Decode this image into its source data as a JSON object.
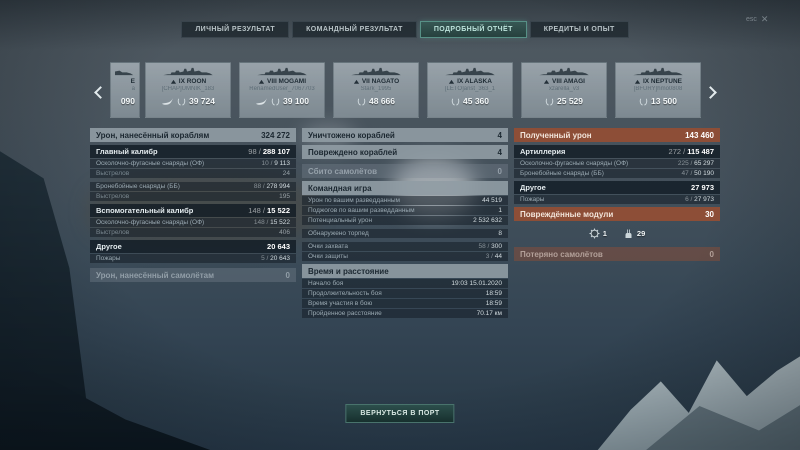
{
  "esc_hint": {
    "key": "esc",
    "close": "✕"
  },
  "tabs": [
    {
      "id": "personal-result",
      "label": "ЛИЧНЫЙ РЕЗУЛЬТАТ",
      "active": false
    },
    {
      "id": "team-result",
      "label": "КОМАНДНЫЙ РЕЗУЛЬТАТ",
      "active": false
    },
    {
      "id": "detailed-report",
      "label": "ПОДРОБНЫЙ ОТЧЁТ",
      "active": true
    },
    {
      "id": "credits-xp",
      "label": "КРЕДИТЫ И ОПЫТ",
      "active": false
    }
  ],
  "carousel": {
    "partial_card": {
      "name_fragment": "E",
      "player_fragment": "a",
      "damage_fragment": "090"
    },
    "ships": [
      {
        "name": "IX ROON",
        "player": "[CHAP]UMNIK_183",
        "damage": "39 724",
        "sunk": true
      },
      {
        "name": "VIII MOGAMI",
        "player": "RenamedUser_7067703",
        "damage": "39 100",
        "sunk": true
      },
      {
        "name": "VII NAGATO",
        "player": "Stark_1995",
        "damage": "48 666",
        "sunk": false
      },
      {
        "name": "IX ALASKA",
        "player": "[LETO]anst_363_1",
        "damage": "45 360",
        "sunk": false
      },
      {
        "name": "VIII AMAGI",
        "player": "xzarella_v3",
        "damage": "25 529",
        "sunk": false
      },
      {
        "name": "IX NEPTUNE",
        "player": "[BFURY]hmo0808",
        "damage": "13 500",
        "sunk": false
      }
    ]
  },
  "columns": {
    "left": {
      "rows": [
        {
          "type": "header",
          "label": "Урон, нанесённый кораблям",
          "value": "324 272"
        },
        {
          "type": "bold",
          "label": "Главный калибр",
          "value": "98 / 288 107"
        },
        {
          "type": "detail",
          "label": "Осколочно-фугасные снаряды (ОФ)",
          "value": "10 / 9 113"
        },
        {
          "type": "detail-dim",
          "label": "Выстрелов",
          "value": "24"
        },
        {
          "type": "detail",
          "label": "Бронебойные снаряды (ББ)",
          "value": "88 / 278 994",
          "gap": true
        },
        {
          "type": "detail-dim",
          "label": "Выстрелов",
          "value": "195"
        },
        {
          "type": "bold",
          "label": "Вспомогательный калибр",
          "value": "148 / 15 522"
        },
        {
          "type": "detail",
          "label": "Осколочно-фугасные снаряды (ОФ)",
          "value": "148 / 15 522"
        },
        {
          "type": "detail-dim",
          "label": "Выстрелов",
          "value": "406"
        },
        {
          "type": "bold",
          "label": "Другое",
          "value": "20 643"
        },
        {
          "type": "detail",
          "label": "Пожары",
          "value": "5 / 20 643"
        },
        {
          "type": "header-dim",
          "label": "Урон, нанесённый самолётам",
          "value": "0"
        }
      ]
    },
    "middle": {
      "rows": [
        {
          "type": "header",
          "label": "Уничтожено кораблей",
          "value": "4"
        },
        {
          "type": "header",
          "label": "Повреждено кораблей",
          "value": "4"
        },
        {
          "type": "header-dim",
          "label": "Сбито самолётов",
          "value": "0"
        },
        {
          "type": "header",
          "label": "Командная игра",
          "value": ""
        },
        {
          "type": "detail",
          "label": "Урон по вашим разведданным",
          "value": "44 519"
        },
        {
          "type": "detail",
          "label": "Поджогов по вашим разведданным",
          "value": "1"
        },
        {
          "type": "detail",
          "label": "Потенциальный урон",
          "value": "2 532 632"
        },
        {
          "type": "detail",
          "label": "Обнаружено торпед",
          "value": "8",
          "gap": true
        },
        {
          "type": "detail",
          "label": "Очки захвата",
          "value": "58 / 300",
          "gap": true
        },
        {
          "type": "detail",
          "label": "Очки защиты",
          "value": "3 / 44"
        },
        {
          "type": "header",
          "label": "Время и расстояние",
          "value": ""
        },
        {
          "type": "detail",
          "label": "Начало боя",
          "value": "19:03 15.01.2020"
        },
        {
          "type": "detail",
          "label": "Продолжительность боя",
          "value": "18:59"
        },
        {
          "type": "detail",
          "label": "Время участия в бою",
          "value": "18:59"
        },
        {
          "type": "detail",
          "label": "Пройденное расстояние",
          "value": "70.17 км"
        }
      ]
    },
    "right": {
      "rows": [
        {
          "type": "header-red",
          "label": "Полученный урон",
          "value": "143 460"
        },
        {
          "type": "bold",
          "label": "Артиллерия",
          "value": "272 / 115 487"
        },
        {
          "type": "detail",
          "label": "Осколочно-фугасные снаряды (ОФ)",
          "value": "225 / 65 297"
        },
        {
          "type": "detail",
          "label": "Бронебойные снаряды (ББ)",
          "value": "47 / 50 190"
        },
        {
          "type": "bold",
          "label": "Другое",
          "value": "27 973"
        },
        {
          "type": "detail",
          "label": "Пожары",
          "value": "6 / 27 973"
        },
        {
          "type": "header-red",
          "label": "Повреждённые модули",
          "value": "30"
        },
        {
          "type": "modules",
          "icons": [
            {
              "icon": "steering-gear-icon",
              "count": "1"
            },
            {
              "icon": "main-turret-icon",
              "count": "29"
            }
          ]
        },
        {
          "type": "header-red-dim",
          "label": "Потеряно самолётов",
          "value": "0"
        }
      ]
    }
  },
  "footer": {
    "return_button": "ВЕРНУТЬСЯ В ПОРТ"
  },
  "colors": {
    "accent_teal": "#579086",
    "header_bar": "#909ca4",
    "received_damage_red": "#944e34",
    "card_bg": "#8d9aa3"
  }
}
